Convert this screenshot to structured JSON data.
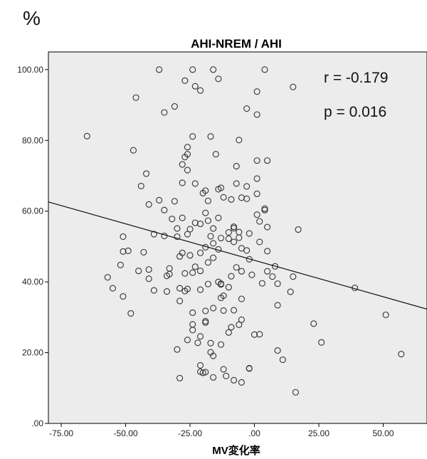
{
  "chart_data": {
    "type": "scatter",
    "unit_label": "%",
    "title": "AHI-NREM / AHI",
    "xlabel": "MV変化率",
    "ylabel": "",
    "xlim": [
      -80,
      67
    ],
    "ylim": [
      0,
      105
    ],
    "xticks": [
      -75,
      -50,
      -25,
      0,
      25,
      50
    ],
    "xtick_labels": [
      "-75.00",
      "-50.00",
      "-25.00",
      ".00",
      "25.00",
      "50.00"
    ],
    "yticks": [
      0,
      20,
      40,
      60,
      80,
      100
    ],
    "ytick_labels": [
      ".00",
      "20.00",
      "40.00",
      "60.00",
      "80.00",
      "100.00"
    ],
    "grid": false,
    "background": "#ececec",
    "point_color": "#333333",
    "annotations": [
      "r = -0.179",
      "p = 0.016"
    ],
    "regression_line": {
      "x": [
        -80,
        67
      ],
      "y": [
        62.6,
        32.3
      ]
    },
    "points": [
      [
        -65,
        81.2
      ],
      [
        -47,
        77.2
      ],
      [
        -42,
        70.6
      ],
      [
        -44,
        67.1
      ],
      [
        -41,
        61.9
      ],
      [
        -37,
        63.1
      ],
      [
        -35,
        60.3
      ],
      [
        -32,
        57.8
      ],
      [
        -31,
        62.8
      ],
      [
        -28,
        58.1
      ],
      [
        -46,
        92.1
      ],
      [
        -37,
        100
      ],
      [
        -35,
        87.9
      ],
      [
        -31,
        89.6
      ],
      [
        -27,
        96.9
      ],
      [
        -24,
        100
      ],
      [
        -23,
        95.3
      ],
      [
        -21,
        94.1
      ],
      [
        -16,
        100
      ],
      [
        -14,
        97.4
      ],
      [
        -24,
        81.1
      ],
      [
        -26,
        78.1
      ],
      [
        -27,
        75.3
      ],
      [
        -26,
        76.1
      ],
      [
        -28,
        73.2
      ],
      [
        -26,
        71.6
      ],
      [
        -28,
        68
      ],
      [
        -23,
        67.8
      ],
      [
        -19,
        65.8
      ],
      [
        -20,
        65.1
      ],
      [
        -17,
        81.1
      ],
      [
        -15,
        76.1
      ],
      [
        -14,
        66.2
      ],
      [
        -13,
        66.6
      ],
      [
        -18,
        62.9
      ],
      [
        -12,
        63.9
      ],
      [
        -9,
        63.3
      ],
      [
        -7,
        72.7
      ],
      [
        -7,
        67.8
      ],
      [
        -5,
        63.8
      ],
      [
        -6,
        80.1
      ],
      [
        -3,
        89
      ],
      [
        1,
        93.8
      ],
      [
        1,
        87.3
      ],
      [
        4,
        100
      ],
      [
        15,
        95.1
      ],
      [
        1,
        74.3
      ],
      [
        5,
        74.3
      ],
      [
        1,
        69.2
      ],
      [
        -3,
        67
      ],
      [
        1,
        64.9
      ],
      [
        -3,
        63.5
      ],
      [
        4,
        60.7
      ],
      [
        4,
        60.3
      ],
      [
        1,
        59
      ],
      [
        2,
        57.1
      ],
      [
        5,
        55.5
      ],
      [
        17,
        54.8
      ],
      [
        -8,
        55.2
      ],
      [
        -8,
        55.6
      ],
      [
        -10,
        54
      ],
      [
        -6,
        54.1
      ],
      [
        -2,
        53.7
      ],
      [
        -6,
        52.5
      ],
      [
        -8,
        51.3
      ],
      [
        -10,
        52.2
      ],
      [
        -13,
        52.4
      ],
      [
        -17,
        52.9
      ],
      [
        -16,
        55.1
      ],
      [
        -14,
        58.1
      ],
      [
        -19,
        59.5
      ],
      [
        -18,
        57.3
      ],
      [
        -21,
        56.4
      ],
      [
        -23,
        56.7
      ],
      [
        -25,
        54.9
      ],
      [
        -26,
        53.5
      ],
      [
        -30,
        55.1
      ],
      [
        -30,
        52.8
      ],
      [
        -35,
        53
      ],
      [
        -39,
        53.5
      ],
      [
        -51,
        52.8
      ],
      [
        -51,
        48.6
      ],
      [
        -49,
        48.8
      ],
      [
        -43,
        48.4
      ],
      [
        -41,
        43.5
      ],
      [
        -33,
        43.8
      ],
      [
        -34,
        41.7
      ],
      [
        -33,
        42.2
      ],
      [
        -29,
        47.2
      ],
      [
        -28,
        48.2
      ],
      [
        -25,
        47.5
      ],
      [
        -21,
        48.2
      ],
      [
        -19,
        49.8
      ],
      [
        -16,
        50.9
      ],
      [
        -14,
        49.2
      ],
      [
        -16,
        46.8
      ],
      [
        -18,
        45.5
      ],
      [
        -21,
        43.1
      ],
      [
        -23,
        44.3
      ],
      [
        -24,
        42.6
      ],
      [
        -27,
        42.4
      ],
      [
        -26,
        38
      ],
      [
        -29,
        38.2
      ],
      [
        -34,
        37.3
      ],
      [
        -39,
        37.6
      ],
      [
        -41,
        40.9
      ],
      [
        -45,
        43.1
      ],
      [
        -52,
        44.8
      ],
      [
        -57,
        41.3
      ],
      [
        -55,
        38.2
      ],
      [
        -51,
        35.9
      ],
      [
        -48,
        31.1
      ],
      [
        -29,
        34.6
      ],
      [
        -27,
        37.4
      ],
      [
        -21,
        37.8
      ],
      [
        -18,
        39.4
      ],
      [
        -14,
        40
      ],
      [
        -13,
        39.3
      ],
      [
        -12,
        36.1
      ],
      [
        -13,
        35.5
      ],
      [
        -13,
        39.5
      ],
      [
        -10,
        38.5
      ],
      [
        -9,
        41.6
      ],
      [
        -7,
        44.1
      ],
      [
        -5,
        43
      ],
      [
        -2,
        46.4
      ],
      [
        -3,
        48.9
      ],
      [
        -5,
        49.5
      ],
      [
        2,
        51.3
      ],
      [
        5,
        48.7
      ],
      [
        8,
        44.4
      ],
      [
        7,
        41.5
      ],
      [
        3,
        39.6
      ],
      [
        -1,
        42
      ],
      [
        5,
        43
      ],
      [
        9,
        39.5
      ],
      [
        15,
        41.5
      ],
      [
        14,
        37.2
      ],
      [
        39,
        38.3
      ],
      [
        9,
        33.4
      ],
      [
        -5,
        35.2
      ],
      [
        -8,
        32
      ],
      [
        -12,
        31.9
      ],
      [
        -16,
        32.6
      ],
      [
        -19,
        31.8
      ],
      [
        -19,
        28.5
      ],
      [
        -19,
        28.9
      ],
      [
        -24,
        31.3
      ],
      [
        -24,
        28
      ],
      [
        -26,
        23.6
      ],
      [
        -24,
        26.4
      ],
      [
        -21,
        24.6
      ],
      [
        -17,
        22.7
      ],
      [
        -17,
        20.1
      ],
      [
        -16,
        19.1
      ],
      [
        -13,
        22.3
      ],
      [
        -10,
        25.7
      ],
      [
        -9,
        27.2
      ],
      [
        -6,
        27.9
      ],
      [
        -5,
        29.3
      ],
      [
        0,
        25.1
      ],
      [
        2,
        25.2
      ],
      [
        9,
        20.6
      ],
      [
        11,
        18
      ],
      [
        -30,
        20.9
      ],
      [
        -22,
        22.8
      ],
      [
        -21,
        16.4
      ],
      [
        -20,
        14.3
      ],
      [
        -21,
        14.6
      ],
      [
        -19,
        14.5
      ],
      [
        -16,
        13
      ],
      [
        -12,
        15.3
      ],
      [
        -11,
        13.4
      ],
      [
        -8,
        12.2
      ],
      [
        -5,
        11.6
      ],
      [
        -2,
        15.5
      ],
      [
        -2,
        15.6
      ],
      [
        -29,
        12.8
      ],
      [
        16,
        8.8
      ],
      [
        23,
        28.2
      ],
      [
        26,
        22.9
      ],
      [
        51,
        30.7
      ],
      [
        57,
        19.6
      ]
    ]
  }
}
